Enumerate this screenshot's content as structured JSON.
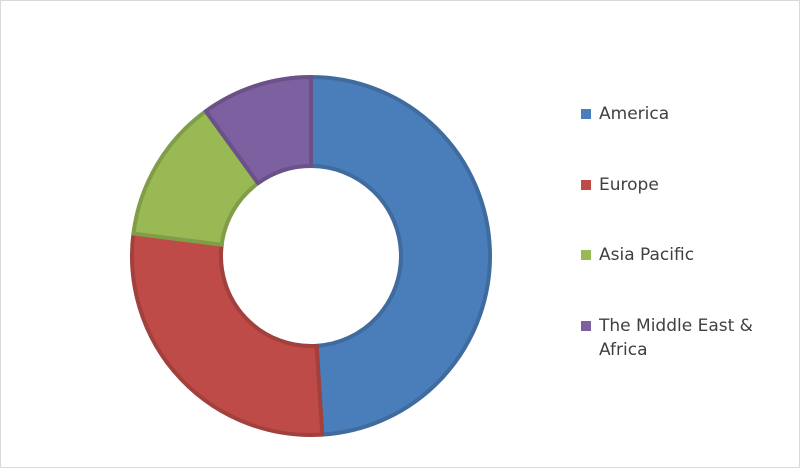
{
  "chart_data": {
    "type": "donut",
    "categories": [
      "America",
      "Europe",
      "Asia Pacific",
      "The Middle East & Africa"
    ],
    "values": [
      49,
      28,
      13,
      10
    ],
    "colors": [
      "#4a7ebb",
      "#be4b48",
      "#98b954",
      "#7d60a0"
    ],
    "legend": "right"
  }
}
